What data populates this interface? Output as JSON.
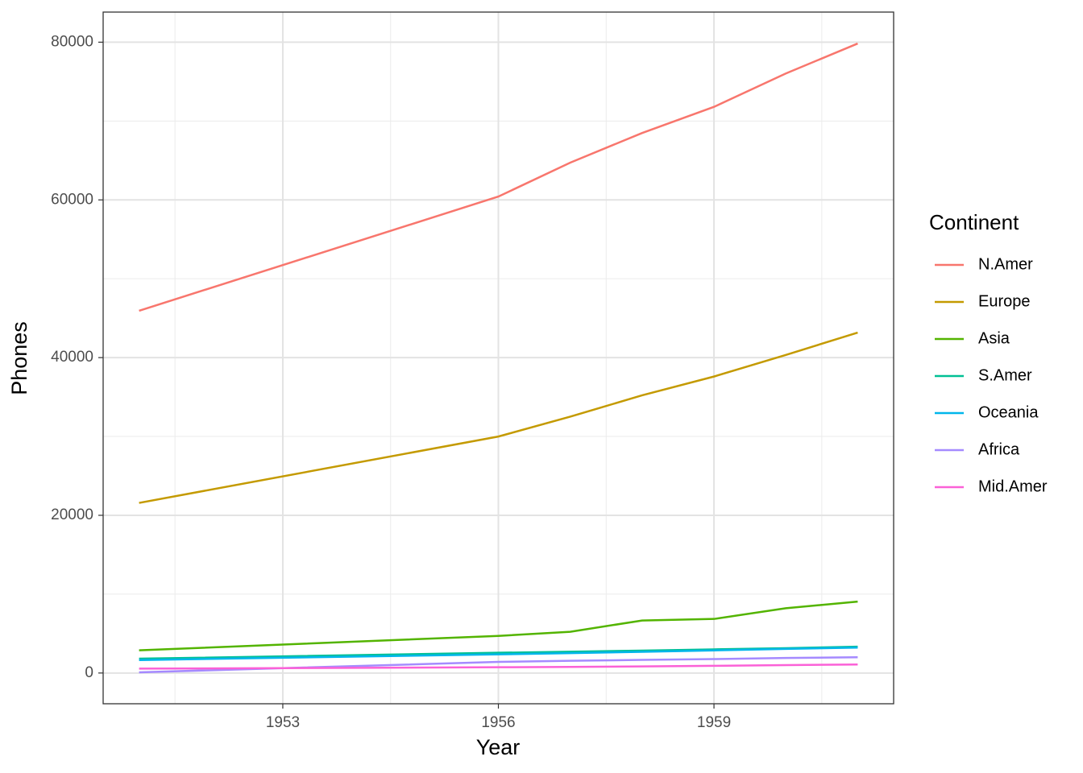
{
  "chart_data": {
    "type": "line",
    "x_label": "Year",
    "y_label": "Phones",
    "legend_title": "Continent",
    "legend_position": "right",
    "x": [
      1951,
      1956,
      1957,
      1958,
      1959,
      1960,
      1961
    ],
    "series": [
      {
        "name": "N.Amer",
        "color": "#F8766D",
        "values": [
          45939,
          60423,
          64721,
          68484,
          71799,
          76036,
          79831
        ]
      },
      {
        "name": "Europe",
        "color": "#C49A00",
        "values": [
          21574,
          29990,
          32510,
          35218,
          37598,
          40341,
          43173
        ]
      },
      {
        "name": "Asia",
        "color": "#53B400",
        "values": [
          2876,
          4708,
          5230,
          6662,
          6856,
          8220,
          9053
        ]
      },
      {
        "name": "S.Amer",
        "color": "#00C094",
        "values": [
          1815,
          2568,
          2695,
          2845,
          3000,
          3145,
          3338
        ]
      },
      {
        "name": "Oceania",
        "color": "#00B6EB",
        "values": [
          1646,
          2366,
          2526,
          2691,
          2868,
          3054,
          3224
        ]
      },
      {
        "name": "Africa",
        "color": "#A58AFF",
        "values": [
          89,
          1411,
          1546,
          1663,
          1769,
          1905,
          2005
        ]
      },
      {
        "name": "Mid.Amer",
        "color": "#FB61D7",
        "values": [
          555,
          733,
          773,
          836,
          911,
          1008,
          1076
        ]
      }
    ],
    "xlim": [
      1950.5,
      1961.5
    ],
    "xticks": [
      1953,
      1956,
      1959
    ],
    "x_minor_grid": [
      1951.5,
      1954.5,
      1957.5,
      1960.5
    ],
    "ylim": [
      -3898,
      83818
    ],
    "yticks": [
      0,
      20000,
      40000,
      60000,
      80000
    ],
    "y_minor_grid": [
      10000,
      30000,
      50000,
      70000
    ],
    "grid": true
  }
}
